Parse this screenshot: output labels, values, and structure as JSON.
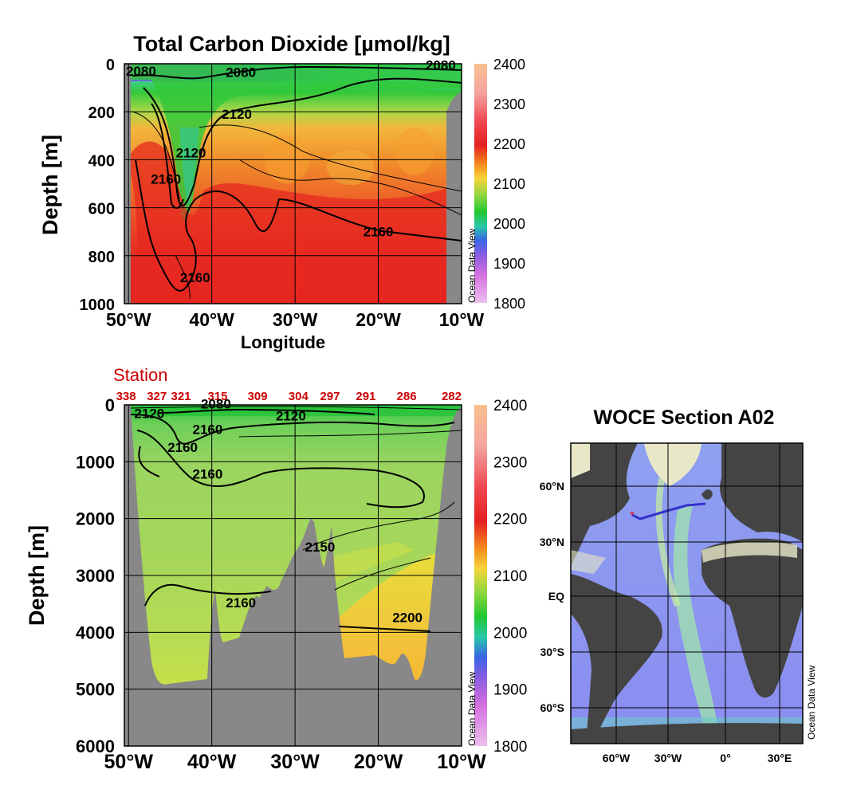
{
  "chart_data": [
    {
      "type": "heatmap",
      "title": "Total Carbon Dioxide [µmol/kg]",
      "xlabel": "Longitude",
      "ylabel": "Depth [m]",
      "x_ticks": [
        "50°W",
        "40°W",
        "30°W",
        "20°W",
        "10°W"
      ],
      "x_tick_values": [
        -50,
        -40,
        -30,
        -20,
        -10
      ],
      "y_ticks": [
        "0",
        "200",
        "400",
        "600",
        "800",
        "1000"
      ],
      "y_tick_values": [
        0,
        200,
        400,
        600,
        800,
        1000
      ],
      "xlim": [
        -50.5,
        -10
      ],
      "ylim": [
        1000,
        0
      ],
      "grid": true,
      "contour_labels": [
        {
          "text": "2080",
          "lon": -48.5,
          "depth": 50
        },
        {
          "text": "2080",
          "lon": -36.5,
          "depth": 55
        },
        {
          "text": "2080",
          "lon": -12.5,
          "depth": 25
        },
        {
          "text": "2120",
          "lon": -37,
          "depth": 230
        },
        {
          "text": "2120",
          "lon": -42.5,
          "depth": 390
        },
        {
          "text": "2160",
          "lon": -45.5,
          "depth": 500
        },
        {
          "text": "2160",
          "lon": -20,
          "depth": 720
        },
        {
          "text": "2160",
          "lon": -42,
          "depth": 910
        }
      ],
      "colorbar": {
        "ticks": [
          "2400",
          "2300",
          "2200",
          "2100",
          "2000",
          "1900",
          "1800"
        ],
        "tick_values": [
          2400,
          2300,
          2200,
          2100,
          2000,
          1900,
          1800
        ],
        "credit": "Ocean Data View"
      }
    },
    {
      "type": "heatmap",
      "ylabel": "Depth [m]",
      "station_label": "Station",
      "stations": [
        "338",
        "327",
        "321",
        "315",
        "309",
        "304",
        "297",
        "291",
        "286",
        "282"
      ],
      "station_lons": [
        -50.3,
        -46.6,
        -43.7,
        -39.3,
        -34.5,
        -29.6,
        -25.8,
        -21.5,
        -16.6,
        -11.2
      ],
      "x_ticks": [
        "50°W",
        "40°W",
        "30°W",
        "20°W",
        "10°W"
      ],
      "x_tick_values": [
        -50,
        -40,
        -30,
        -20,
        -10
      ],
      "y_ticks": [
        "0",
        "1000",
        "2000",
        "3000",
        "4000",
        "5000",
        "6000"
      ],
      "y_tick_values": [
        0,
        1000,
        2000,
        3000,
        4000,
        5000,
        6000
      ],
      "xlim": [
        -50.5,
        -10
      ],
      "ylim": [
        6000,
        0
      ],
      "grid": true,
      "contour_labels": [
        {
          "text": "2080",
          "lon": -39.5,
          "depth": 60
        },
        {
          "text": "2120",
          "lon": -47.5,
          "depth": 230
        },
        {
          "text": "2120",
          "lon": -30.5,
          "depth": 270
        },
        {
          "text": "2160",
          "lon": -40.5,
          "depth": 510
        },
        {
          "text": "2160",
          "lon": -43.5,
          "depth": 830
        },
        {
          "text": "2160",
          "lon": -40.5,
          "depth": 1300
        },
        {
          "text": "2160",
          "lon": -36.5,
          "depth": 3560
        },
        {
          "text": "2200",
          "lon": -16.5,
          "depth": 3820
        },
        {
          "text": "2150",
          "lon": -27,
          "depth": 2580
        }
      ],
      "colorbar": {
        "ticks": [
          "2400",
          "2300",
          "2200",
          "2100",
          "2000",
          "1900",
          "1800"
        ],
        "tick_values": [
          2400,
          2300,
          2200,
          2100,
          2000,
          1900,
          1800
        ],
        "credit": "Ocean Data View"
      }
    },
    {
      "type": "map",
      "title": "WOCE Section A02",
      "x_ticks": [
        "60°W",
        "30°W",
        "0°",
        "30°E"
      ],
      "y_ticks": [
        "60°N",
        "30°N",
        "EQ",
        "30°S",
        "60°S"
      ],
      "credit": "Ocean Data View",
      "track_color": "#3333cc",
      "marker_color": "#ff0000"
    }
  ]
}
